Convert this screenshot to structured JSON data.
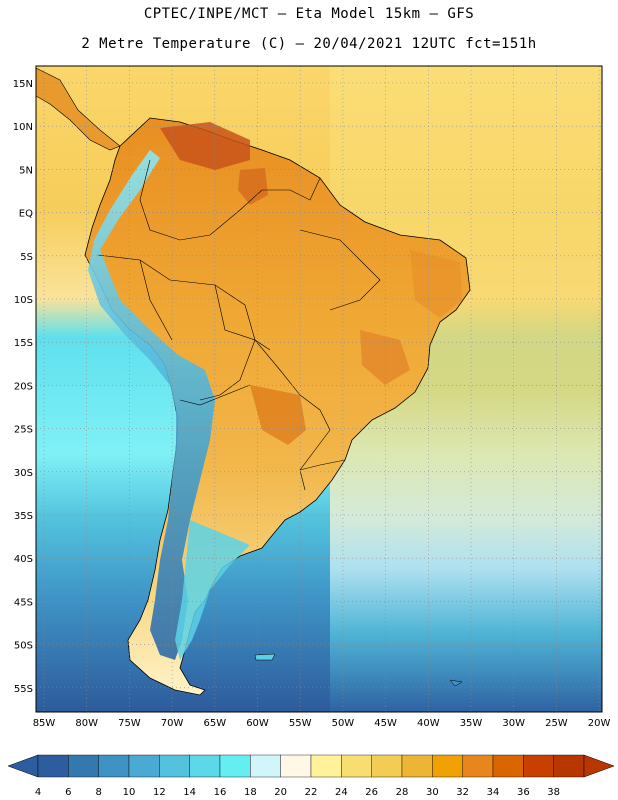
{
  "header": {
    "line1": "CPTEC/INPE/MCT –  Eta Model 15km – GFS",
    "line2": "2 Metre Temperature (C) – 20/04/2021 12UTC fct=151h"
  },
  "map": {
    "lat_labels": [
      "15N",
      "10N",
      "5N",
      "EQ",
      "5S",
      "10S",
      "15S",
      "20S",
      "25S",
      "30S",
      "35S",
      "40S",
      "45S",
      "50S",
      "55S"
    ],
    "lon_labels": [
      "85W",
      "80W",
      "75W",
      "70W",
      "65W",
      "60W",
      "55W",
      "50W",
      "45W",
      "40W",
      "35W",
      "30W",
      "25W",
      "20W"
    ]
  },
  "colorbar": {
    "labels": [
      "4",
      "6",
      "8",
      "10",
      "12",
      "14",
      "16",
      "18",
      "20",
      "22",
      "24",
      "26",
      "28",
      "30",
      "32",
      "34",
      "36",
      "38"
    ],
    "colors": [
      "#2d5d9f",
      "#3478b0",
      "#3f92c4",
      "#4aaad4",
      "#54c2de",
      "#5cd8e8",
      "#64eef2",
      "#d2f5fb",
      "#fff8e6",
      "#fff29a",
      "#f8de70",
      "#f2cc55",
      "#edb535",
      "#f0a100",
      "#e8861e",
      "#d96400",
      "#c84000",
      "#b83600"
    ]
  }
}
